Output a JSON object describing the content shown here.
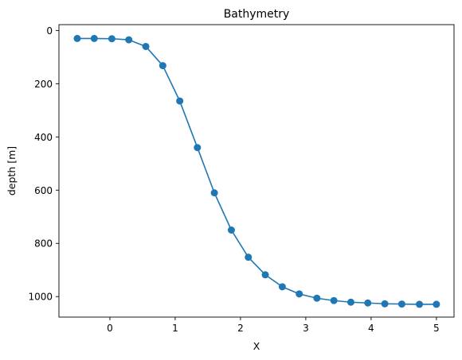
{
  "chart_data": {
    "type": "line",
    "title": "Bathymetry",
    "xlabel": "X",
    "ylabel": "depth [m]",
    "xlim": [
      -0.78,
      5.27
    ],
    "ylim": [
      1077,
      -22
    ],
    "y_inverted": true,
    "grid": false,
    "x_ticks": [
      0,
      1,
      2,
      3,
      4,
      5
    ],
    "y_ticks": [
      0,
      200,
      400,
      600,
      800,
      1000
    ],
    "series": [
      {
        "color": "#1f77b4",
        "marker": "circle",
        "x": [
          -0.5,
          -0.24,
          0.03,
          0.29,
          0.55,
          0.81,
          1.07,
          1.34,
          1.6,
          1.86,
          2.12,
          2.38,
          2.64,
          2.9,
          3.17,
          3.43,
          3.69,
          3.95,
          4.21,
          4.47,
          4.74,
          5.0
        ],
        "y": [
          30,
          30,
          31,
          35,
          60,
          132,
          265,
          440,
          610,
          750,
          852,
          918,
          963,
          990,
          1006,
          1015,
          1021,
          1024,
          1027,
          1028,
          1029,
          1029
        ]
      }
    ]
  }
}
